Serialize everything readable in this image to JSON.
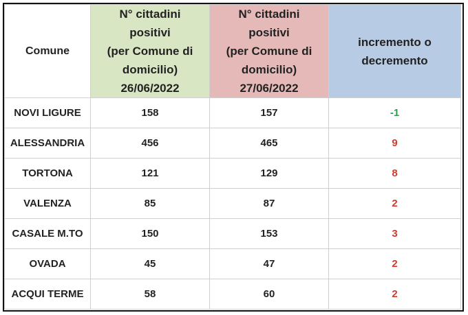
{
  "table": {
    "headers": {
      "comune": "Comune",
      "day1": [
        "N° cittadini",
        "positivi",
        "(per Comune di",
        "domicilio)",
        "26/06/2022"
      ],
      "day2": [
        "N° cittadini",
        "positivi",
        "(per Comune di",
        "domicilio)",
        "27/06/2022"
      ],
      "change": [
        "incremento o",
        "decremento"
      ]
    },
    "rows": [
      {
        "comune": "NOVI LIGURE",
        "day1": "158",
        "day2": "157",
        "change": "-1"
      },
      {
        "comune": "ALESSANDRIA",
        "day1": "456",
        "day2": "465",
        "change": "9"
      },
      {
        "comune": "TORTONA",
        "day1": "121",
        "day2": "129",
        "change": "8"
      },
      {
        "comune": "VALENZA",
        "day1": "85",
        "day2": "87",
        "change": "2"
      },
      {
        "comune": "CASALE M.TO",
        "day1": "150",
        "day2": "153",
        "change": "3"
      },
      {
        "comune": "OVADA",
        "day1": "45",
        "day2": "47",
        "change": "2"
      },
      {
        "comune": "ACQUI TERME",
        "day1": "58",
        "day2": "60",
        "change": "2"
      }
    ]
  },
  "colors": {
    "header_day1": "#d9e6c4",
    "header_day2": "#e6b9b9",
    "header_change": "#b7cbe4",
    "decrease": "#2e9d4e",
    "increase": "#d23a2e"
  }
}
